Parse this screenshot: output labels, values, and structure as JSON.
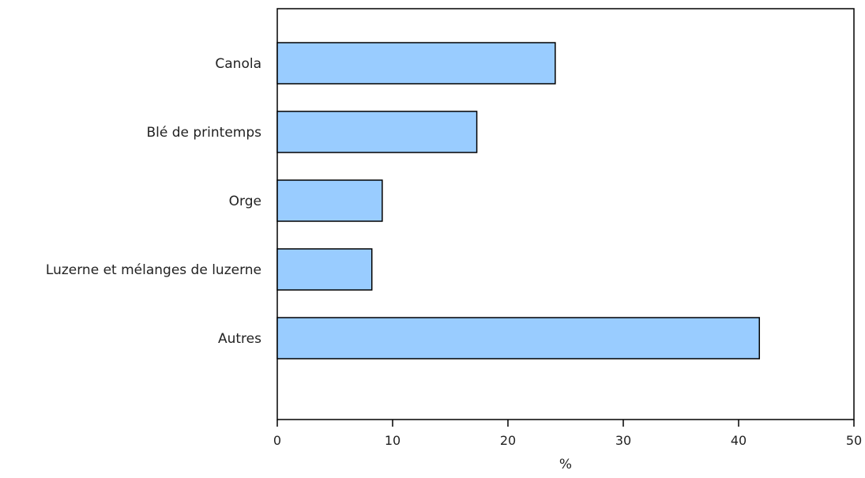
{
  "chart_data": {
    "type": "bar",
    "orientation": "horizontal",
    "categories": [
      "Canola",
      "Blé de printemps",
      "Orge",
      "Luzerne et mélanges de luzerne",
      "Autres"
    ],
    "values": [
      24.1,
      17.3,
      9.1,
      8.2,
      41.8
    ],
    "title": "",
    "xlabel": "%",
    "ylabel": "",
    "xlim": [
      0,
      50
    ],
    "xticks": [
      0,
      10,
      20,
      30,
      40,
      50
    ],
    "xtick_labels": [
      "0",
      "10",
      "20",
      "30",
      "40",
      "50"
    ],
    "grid": false,
    "legend": "none",
    "colors": {
      "bar_fill": "#99ccff",
      "bar_stroke": "#000000",
      "axis": "#000000"
    }
  }
}
